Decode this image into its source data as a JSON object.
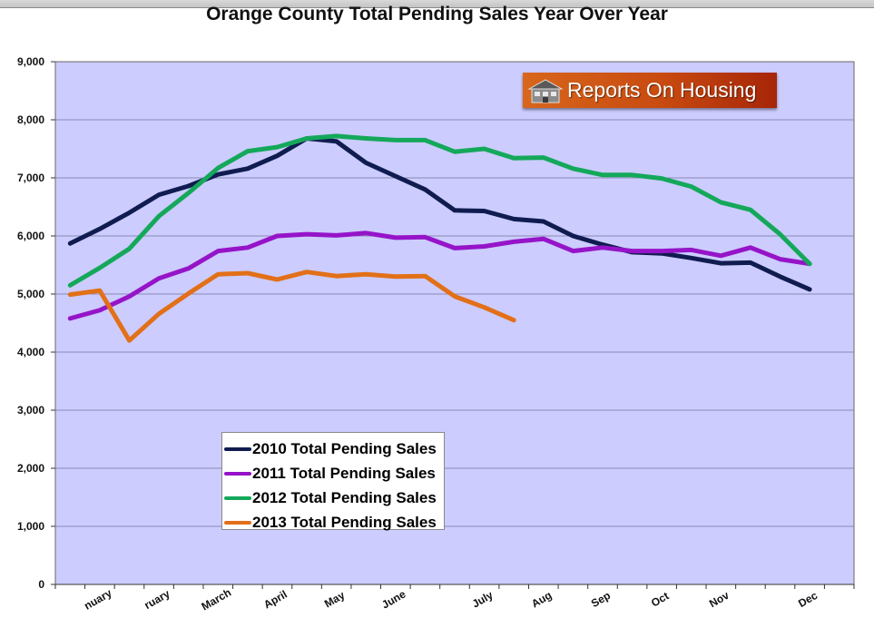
{
  "title": "Orange County Total Pending Sales Year Over Year",
  "brand": {
    "text": "Reports On Housing"
  },
  "chart_data": {
    "type": "line",
    "title": "Orange County Total Pending Sales Year Over Year",
    "xlabel": "",
    "ylabel": "",
    "ylim": [
      0,
      9000
    ],
    "yticks": [
      0,
      1000,
      2000,
      3000,
      4000,
      5000,
      6000,
      7000,
      8000,
      9000
    ],
    "ytick_labels": [
      "0",
      "1,000",
      "2,000",
      "3,000",
      "4,000",
      "5,000",
      "6,000",
      "7,000",
      "8,000",
      "9,000"
    ],
    "month_labels": [
      "January",
      "February",
      "March",
      "April",
      "May",
      "June",
      "July",
      "Aug",
      "Sep",
      "Oct",
      "Nov",
      "Dec"
    ],
    "month_label_visible_text": [
      "nuary",
      "ruary",
      "March",
      "April",
      "May",
      "June",
      "July",
      "Aug",
      "Sep",
      "Oct",
      "Nov",
      "Dec"
    ],
    "month_label_positions": [
      1.5,
      3.5,
      5.5,
      7.5,
      9.5,
      11.5,
      14.5,
      16.5,
      18.5,
      20.5,
      22.5,
      25.5
    ],
    "x_points": 27,
    "grid": true,
    "legend_position": "lower-left",
    "background": "#ccccff",
    "series": [
      {
        "name": "2010 Total Pending Sales",
        "color": "#101c50",
        "values": [
          5870,
          6120,
          6400,
          6710,
          6860,
          7060,
          7160,
          7380,
          7680,
          7630,
          7260,
          7030,
          6800,
          6440,
          6430,
          6290,
          6250,
          6000,
          5850,
          5720,
          5700,
          5620,
          5530,
          5540,
          5300,
          5080
        ]
      },
      {
        "name": "2011 Total Pending Sales",
        "color": "#9614c8",
        "values": [
          4580,
          4720,
          4960,
          5270,
          5440,
          5740,
          5800,
          6000,
          6030,
          6010,
          6050,
          5970,
          5980,
          5790,
          5820,
          5900,
          5950,
          5740,
          5800,
          5740,
          5740,
          5760,
          5660,
          5800,
          5600,
          5520
        ]
      },
      {
        "name": "2012 Total Pending Sales",
        "color": "#14a85a",
        "values": [
          5150,
          5450,
          5780,
          6340,
          6740,
          7170,
          7460,
          7530,
          7680,
          7720,
          7680,
          7650,
          7650,
          7450,
          7500,
          7340,
          7350,
          7160,
          7050,
          7050,
          6990,
          6850,
          6580,
          6450,
          6030,
          5520
        ]
      },
      {
        "name": "2013 Total Pending Sales",
        "color": "#e27018",
        "values": [
          4990,
          5060,
          4200,
          4660,
          5010,
          5340,
          5360,
          5250,
          5380,
          5310,
          5340,
          5300,
          5310,
          4960,
          4770,
          4550
        ]
      }
    ]
  }
}
